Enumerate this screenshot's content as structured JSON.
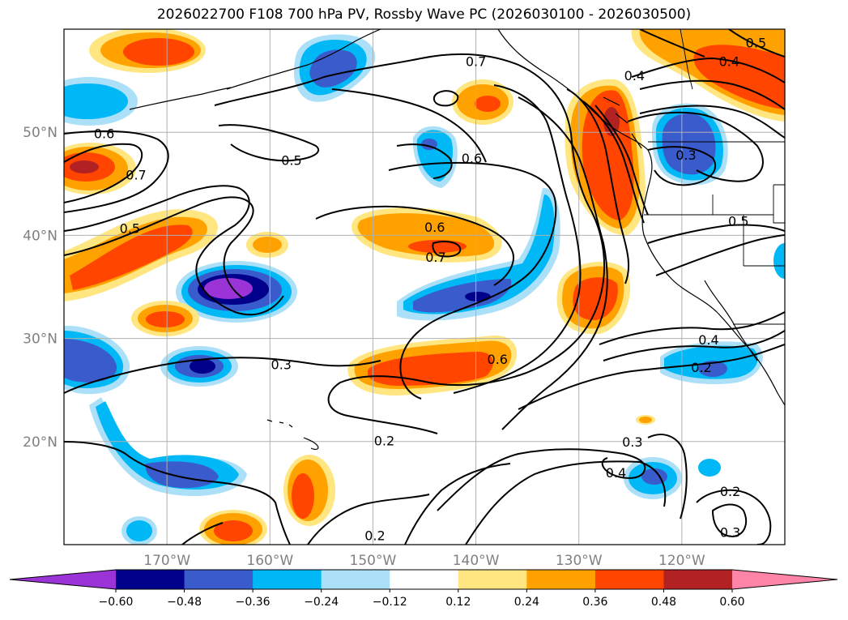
{
  "title": "2026022700 F108 700 hPa PV, Rossby Wave PC (2026030100 - 2026030500)",
  "map": {
    "lat_ticks": [
      {
        "value": 50,
        "label": "50°N"
      },
      {
        "value": 40,
        "label": "40°N"
      },
      {
        "value": 30,
        "label": "30°N"
      },
      {
        "value": 20,
        "label": "20°N"
      }
    ],
    "lon_ticks": [
      {
        "value": -170,
        "label": "170°W"
      },
      {
        "value": -160,
        "label": "160°W"
      },
      {
        "value": -150,
        "label": "150°W"
      },
      {
        "value": -140,
        "label": "140°W"
      },
      {
        "value": -130,
        "label": "130°W"
      },
      {
        "value": -120,
        "label": "120°W"
      }
    ],
    "extent": {
      "lon_min": -180,
      "lon_max": -110,
      "lat_min": 10,
      "lat_max": 60
    }
  },
  "colorbar": {
    "tick_labels": [
      "−0.60",
      "−0.48",
      "−0.36",
      "−0.24",
      "−0.12",
      "0.12",
      "0.24",
      "0.36",
      "0.48",
      "0.60"
    ],
    "levels": [
      -0.6,
      -0.48,
      -0.36,
      -0.24,
      -0.12,
      0.12,
      0.24,
      0.36,
      0.48,
      0.6
    ],
    "colors": [
      "#9a34d6",
      "#00008b",
      "#3a5bcc",
      "#00b8f5",
      "#abe0f8",
      "#ffffff",
      "#ffe680",
      "#ffa200",
      "#ff4500",
      "#b22222",
      "#ff85a8"
    ]
  },
  "contour_labels": [
    {
      "text": "0.6",
      "lon": -176.1,
      "lat": 49.9
    },
    {
      "text": "0.7",
      "lon": -173.0,
      "lat": 45.9
    },
    {
      "text": "0.5",
      "lon": -173.6,
      "lat": 40.7
    },
    {
      "text": "0.5",
      "lon": -157.9,
      "lat": 47.3
    },
    {
      "text": "0.7",
      "lon": -140.0,
      "lat": 56.9
    },
    {
      "text": "0.6",
      "lon": -140.4,
      "lat": 47.5
    },
    {
      "text": "0.6",
      "lon": -144.0,
      "lat": 40.8
    },
    {
      "text": "0.7",
      "lon": -143.9,
      "lat": 37.9
    },
    {
      "text": "0.4",
      "lon": -124.6,
      "lat": 55.5
    },
    {
      "text": "0.4",
      "lon": -115.4,
      "lat": 56.9
    },
    {
      "text": "0.5",
      "lon": -112.8,
      "lat": 58.7
    },
    {
      "text": "0.3",
      "lon": -119.6,
      "lat": 47.8
    },
    {
      "text": "0.5",
      "lon": -114.5,
      "lat": 41.4
    },
    {
      "text": "0.4",
      "lon": -117.4,
      "lat": 29.9
    },
    {
      "text": "0.2",
      "lon": -118.1,
      "lat": 27.2
    },
    {
      "text": "0.6",
      "lon": -137.9,
      "lat": 28.0
    },
    {
      "text": "0.3",
      "lon": -158.9,
      "lat": 27.5
    },
    {
      "text": "0.2",
      "lon": -148.9,
      "lat": 20.1
    },
    {
      "text": "0.3",
      "lon": -124.8,
      "lat": 20.0
    },
    {
      "text": "0.4",
      "lon": -126.4,
      "lat": 17.0
    },
    {
      "text": "0.2",
      "lon": -115.3,
      "lat": 15.2
    },
    {
      "text": "0.3",
      "lon": -115.3,
      "lat": 11.2
    },
    {
      "text": "0.2",
      "lon": -149.8,
      "lat": 10.9
    }
  ]
}
